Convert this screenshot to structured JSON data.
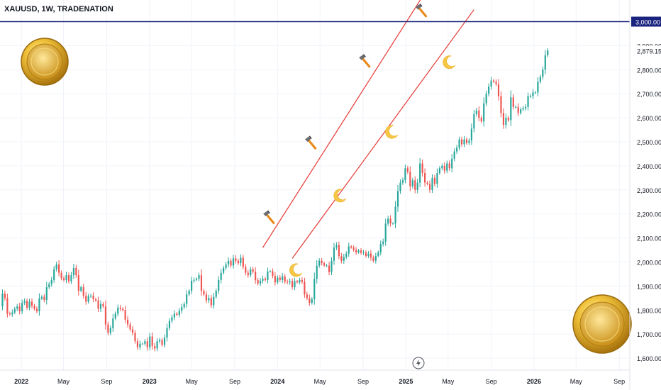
{
  "symbol_title": "XAUUSD, 1W, TRADENATION",
  "colors": {
    "up": "#26a69a",
    "down": "#ef5350",
    "channel": "#e53935",
    "resistance": "#1a237e",
    "axis_text": "#131722",
    "grid": "#f0f3fa"
  },
  "icons": {
    "top_markers": "hammer-icon",
    "bottom_markers": "crescent-moon-icon",
    "coins": "gold-coin-icon",
    "footer": "lightning-icon"
  },
  "chart_data": {
    "type": "candlestick",
    "title": "XAUUSD, 1W, TRADENATION",
    "ylim": [
      1550,
      3090
    ],
    "y_ticks": [
      1600,
      1700,
      1800,
      1900,
      2000,
      2100,
      2200,
      2300,
      2400,
      2500,
      2600,
      2700,
      2800,
      2900
    ],
    "y_tick_labels": [
      "1,600.00",
      "1,700.00",
      "1,800.00",
      "1,900.00",
      "2,000.00",
      "2,100.00",
      "2,200.00",
      "2,300.00",
      "2,400.00",
      "2,500.00",
      "2,600.00",
      "2,700.00",
      "2,800.00",
      "2,900.00"
    ],
    "x_ticks": [
      "2022",
      "May",
      "Sep",
      "2023",
      "May",
      "Sep",
      "2024",
      "May",
      "Sep",
      "2025",
      "May",
      "Sep",
      "2026",
      "May",
      "Sep"
    ],
    "x_tick_dates": [
      "2022-01",
      "2022-05",
      "2022-09",
      "2023-01",
      "2023-05",
      "2023-09",
      "2024-01",
      "2024-05",
      "2024-09",
      "2025-01",
      "2025-05",
      "2025-09",
      "2026-01",
      "2026-05",
      "2026-09"
    ],
    "x_range": [
      "2021-11",
      "2026-10"
    ],
    "resistance": {
      "value": 3000,
      "label": "3,000.00"
    },
    "last_price": {
      "value": 2879.15,
      "label": "2,879.15"
    },
    "channel": {
      "upper": [
        {
          "date": "2023-11-20",
          "value": 2060
        },
        {
          "date": "2025-02-24",
          "value": 3120
        }
      ],
      "lower": [
        {
          "date": "2024-02-12",
          "value": 2015
        },
        {
          "date": "2025-07-14",
          "value": 3050
        }
      ]
    },
    "markers_top": [
      {
        "date": "2023-12-04",
        "value": 2190
      },
      {
        "date": "2024-04-01",
        "value": 2500
      },
      {
        "date": "2024-09-02",
        "value": 2840
      },
      {
        "date": "2025-02-10",
        "value": 3050
      }
    ],
    "markers_bottom": [
      {
        "date": "2024-02-19",
        "value": 1965
      },
      {
        "date": "2024-06-24",
        "value": 2275
      },
      {
        "date": "2024-11-18",
        "value": 2540
      },
      {
        "date": "2025-05-01",
        "value": 2830
      }
    ],
    "series": [
      {
        "start": "2021-11-01",
        "interval_days": 7,
        "closes": [
          1815,
          1868,
          1850,
          1785,
          1782,
          1790,
          1805,
          1815,
          1795,
          1830,
          1838,
          1810,
          1835,
          1818,
          1805,
          1795,
          1848,
          1855,
          1842,
          1895,
          1908,
          1925,
          1970,
          1990,
          1955,
          1932,
          1925,
          1945,
          1920,
          1945,
          1975,
          1945,
          1880,
          1895,
          1860,
          1835,
          1858,
          1860,
          1845,
          1840,
          1805,
          1825,
          1815,
          1740,
          1705,
          1725,
          1765,
          1785,
          1810,
          1805,
          1800,
          1760,
          1740,
          1720,
          1705,
          1670,
          1645,
          1660,
          1660,
          1670,
          1645,
          1690,
          1650,
          1640,
          1670,
          1675,
          1655,
          1685,
          1725,
          1755,
          1770,
          1785,
          1780,
          1797,
          1812,
          1825,
          1865,
          1880,
          1922,
          1925,
          1930,
          1945,
          1880,
          1865,
          1840,
          1850,
          1820,
          1855,
          1880,
          1925,
          1955,
          1975,
          1990,
          2005,
          1985,
          2015,
          2005,
          1995,
          2018,
          1980,
          1955,
          1945,
          1970,
          1960,
          1925,
          1910,
          1922,
          1930,
          1925,
          1960,
          1962,
          1942,
          1915,
          1935,
          1925,
          1940,
          1918,
          1915,
          1920,
          1895,
          1920,
          1915,
          1925,
          1918,
          1865,
          1850,
          1830,
          1845,
          1930,
          1985,
          2005,
          1995,
          1985,
          1985,
          1958,
          2005,
          2060,
          2070,
          2025,
          2005,
          2020,
          2035,
          2065,
          2060,
          2050,
          2040,
          2048,
          2038,
          2040,
          2025,
          2035,
          2018,
          2005,
          2025,
          2040,
          2075,
          2085,
          2160,
          2180,
          2160,
          2160,
          2230,
          2295,
          2330,
          2340,
          2390,
          2375,
          2315,
          2340,
          2300,
          2330,
          2410,
          2370,
          2330,
          2325,
          2300,
          2350,
          2325,
          2370,
          2390,
          2400,
          2380,
          2410,
          2390,
          2430,
          2460,
          2475,
          2510,
          2490,
          2510,
          2495,
          2505,
          2555,
          2615,
          2630,
          2600,
          2585,
          2660,
          2700,
          2730,
          2755,
          2750,
          2740,
          2690,
          2620,
          2570,
          2600,
          2590,
          2685,
          2645,
          2645,
          2620,
          2635,
          2640,
          2645,
          2690,
          2690,
          2705,
          2705,
          2750,
          2770,
          2800,
          2860,
          2880
        ]
      }
    ]
  }
}
